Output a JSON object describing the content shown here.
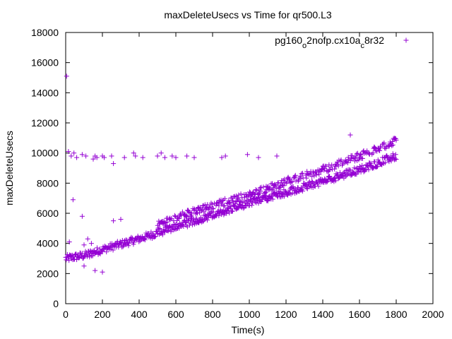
{
  "chart_data": {
    "type": "scatter",
    "title": "maxDeleteUsecs vs Time for qr500.L3",
    "xlabel": "Time(s)",
    "ylabel": "maxDeleteUsecs",
    "xlim": [
      0,
      2000
    ],
    "ylim": [
      0,
      18000
    ],
    "xticks": [
      0,
      200,
      400,
      600,
      800,
      1000,
      1200,
      1400,
      1600,
      1800,
      2000
    ],
    "yticks": [
      0,
      2000,
      4000,
      6000,
      8000,
      10000,
      12000,
      14000,
      16000,
      18000
    ],
    "grid": false,
    "legend_position": "top-right",
    "marker": "+",
    "series": [
      {
        "name": "pg160_o2nofp.cx10a_c8r32",
        "name_parts": {
          "base": "pg160",
          "sub1": "o",
          "mid": "2nofp.cx10a",
          "sub2": "c",
          "end": "8r32"
        },
        "color": "#9400d3",
        "trend_lower": {
          "x": [
            0,
            100,
            200,
            400,
            600,
            800,
            1000,
            1200,
            1400,
            1600,
            1800
          ],
          "y": [
            3000,
            3200,
            3600,
            4300,
            5100,
            5900,
            6700,
            7400,
            8100,
            8900,
            9800
          ]
        },
        "trend_upper": {
          "x": [
            500,
            600,
            800,
            1000,
            1200,
            1400,
            1600,
            1800
          ],
          "y": [
            5200,
            5700,
            6500,
            7200,
            8100,
            8900,
            9800,
            10800
          ]
        },
        "outliers": {
          "x": [
            5,
            15,
            30,
            45,
            60,
            90,
            110,
            150,
            160,
            170,
            200,
            210,
            250,
            260,
            320,
            370,
            380,
            420,
            500,
            520,
            540,
            580,
            600,
            660,
            700,
            850,
            870,
            990,
            1050,
            1150,
            1550,
            160,
            200,
            260,
            300,
            40,
            90,
            100,
            120,
            130,
            140,
            100,
            20
          ],
          "y": [
            15100,
            10100,
            9800,
            10000,
            9700,
            9900,
            9800,
            9600,
            9800,
            9700,
            9800,
            9700,
            9800,
            9300,
            9700,
            10000,
            9800,
            9700,
            9800,
            10000,
            9700,
            9800,
            9700,
            9800,
            9700,
            9700,
            9800,
            9900,
            9700,
            9800,
            11200,
            2200,
            2100,
            5500,
            5600,
            6900,
            5800,
            3900,
            4300,
            3100,
            4000,
            2500,
            4100
          ]
        }
      }
    ]
  }
}
